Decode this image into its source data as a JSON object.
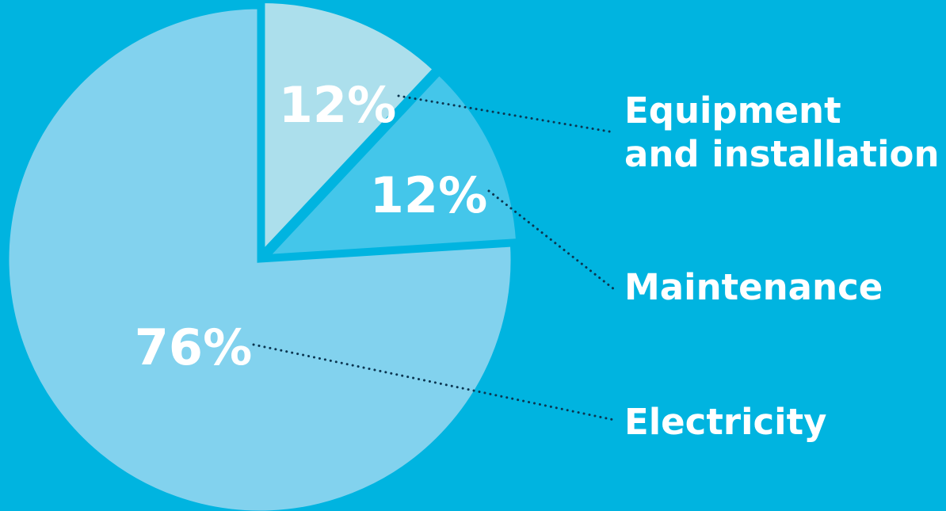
{
  "chart_data": {
    "type": "pie",
    "slices": [
      {
        "label": "Electricity",
        "value": 76,
        "value_label": "76%",
        "color": "#82d2ee"
      },
      {
        "label": "Equipment and installation",
        "label_lines": [
          "Equipment",
          "and installation"
        ],
        "value": 12,
        "value_label": "12%",
        "color": "#acdfec"
      },
      {
        "label": "Maintenance",
        "value": 12,
        "value_label": "12%",
        "color": "#44c6ea"
      }
    ],
    "background_color": "#00b4e0",
    "separator_color": "#00b4e0",
    "leader_line_color": "#0b3550",
    "legend": "right"
  }
}
